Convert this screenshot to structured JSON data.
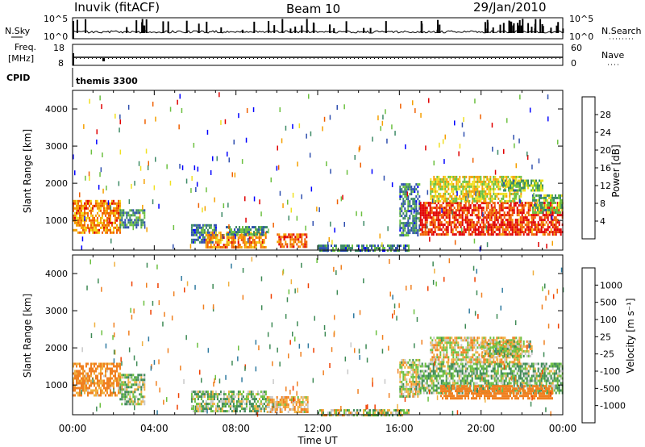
{
  "header": {
    "station": "Inuvik (fitACF)",
    "beam": "Beam 10",
    "date": "29/Jan/2010"
  },
  "top_panels": {
    "nsky_label": "N.Sky",
    "nsky_ticks": [
      "10^5",
      "10^0"
    ],
    "nsearch_label": "N.Search",
    "nsearch_ticks": [
      "10^5",
      "10^0"
    ],
    "freq_label_top": "Freq.",
    "freq_label_bottom": "[MHz]",
    "freq_ticks": [
      "18",
      "8"
    ],
    "nave_label": "Nave",
    "nave_ticks": [
      "60",
      "0"
    ],
    "cpid_label": "CPID",
    "cpid_value": "themis 3300"
  },
  "axes": {
    "ylabel": "Slant Range [km]",
    "xlabel": "Time UT",
    "x_ticks": [
      "00:00",
      "04:00",
      "08:00",
      "12:00",
      "16:00",
      "20:00",
      "00:00"
    ],
    "y_ticks": [
      "1000",
      "2000",
      "3000",
      "4000"
    ]
  },
  "colorbars": {
    "power": {
      "label": "Power [dB]",
      "ticks": [
        "4",
        "8",
        "12",
        "16",
        "20",
        "24",
        "28"
      ],
      "colors": [
        "#0000ff",
        "#2f4faf",
        "#3d8a66",
        "#6cc040",
        "#f0e020",
        "#f5a000",
        "#f06000",
        "#e00000"
      ]
    },
    "velocity": {
      "label": "Velocity [m s⁻¹]",
      "ticks": [
        "1000",
        "500",
        "100",
        "25",
        "-25",
        "-100",
        "-500",
        "-1000"
      ],
      "colors": [
        "#1a3fc8",
        "#2f7aa0",
        "#3e8a55",
        "#6cc040",
        "#c8c8c8",
        "#f0b040",
        "#f08020",
        "#f04000",
        "#e00000"
      ]
    }
  },
  "chart_data": [
    {
      "type": "heatmap",
      "title": "Power",
      "xlabel": "Time UT",
      "ylabel": "Slant Range [km]",
      "xlim": [
        0,
        24
      ],
      "ylim": [
        200,
        4500
      ],
      "colorbar_range": [
        0,
        30
      ],
      "regions": [
        {
          "t": [
            0.0,
            2.3
          ],
          "r": [
            650,
            1550
          ],
          "v": 22
        },
        {
          "t": [
            2.3,
            3.5
          ],
          "r": [
            800,
            1300
          ],
          "v": 10
        },
        {
          "t": [
            5.8,
            7.0
          ],
          "r": [
            400,
            900
          ],
          "v": 8
        },
        {
          "t": [
            6.5,
            9.5
          ],
          "r": [
            300,
            700
          ],
          "v": 22
        },
        {
          "t": [
            7.5,
            9.5
          ],
          "r": [
            600,
            850
          ],
          "v": 10
        },
        {
          "t": [
            10.0,
            11.5
          ],
          "r": [
            300,
            650
          ],
          "v": 24
        },
        {
          "t": [
            12.0,
            16.5
          ],
          "r": [
            200,
            350
          ],
          "v": 8
        },
        {
          "t": [
            16.0,
            17.0
          ],
          "r": [
            600,
            2000
          ],
          "v": 8
        },
        {
          "t": [
            17.0,
            24.0
          ],
          "r": [
            600,
            1500
          ],
          "v": 27
        },
        {
          "t": [
            17.5,
            22.0
          ],
          "r": [
            1500,
            2200
          ],
          "v": 17
        },
        {
          "t": [
            21.0,
            23.0
          ],
          "r": [
            1800,
            2100
          ],
          "v": 12
        },
        {
          "t": [
            22.5,
            24.0
          ],
          "r": [
            1200,
            1700
          ],
          "v": 12
        }
      ]
    },
    {
      "type": "heatmap",
      "title": "Velocity",
      "xlabel": "Time UT",
      "ylabel": "Slant Range [km]",
      "xlim": [
        0,
        24
      ],
      "ylim": [
        200,
        4500
      ],
      "colorbar_range": [
        -1000,
        1000
      ],
      "regions": [
        {
          "t": [
            0.0,
            2.3
          ],
          "r": [
            700,
            1600
          ],
          "v": -150
        },
        {
          "t": [
            2.3,
            3.5
          ],
          "r": [
            500,
            1300
          ],
          "v": 50
        },
        {
          "t": [
            5.8,
            9.5
          ],
          "r": [
            300,
            850
          ],
          "v": 60
        },
        {
          "t": [
            9.5,
            11.5
          ],
          "r": [
            300,
            700
          ],
          "v": -80
        },
        {
          "t": [
            12.0,
            16.5
          ],
          "r": [
            200,
            350
          ],
          "v": 20
        },
        {
          "t": [
            16.0,
            17.0
          ],
          "r": [
            700,
            1700
          ],
          "v": 0
        },
        {
          "t": [
            17.0,
            24.0
          ],
          "r": [
            800,
            1600
          ],
          "v": 80
        },
        {
          "t": [
            18.0,
            23.5
          ],
          "r": [
            650,
            1000
          ],
          "v": -300
        },
        {
          "t": [
            17.5,
            22.0
          ],
          "r": [
            1600,
            2300
          ],
          "v": -30
        },
        {
          "t": [
            20.0,
            22.5
          ],
          "r": [
            1800,
            2200
          ],
          "v": 0
        }
      ]
    }
  ]
}
